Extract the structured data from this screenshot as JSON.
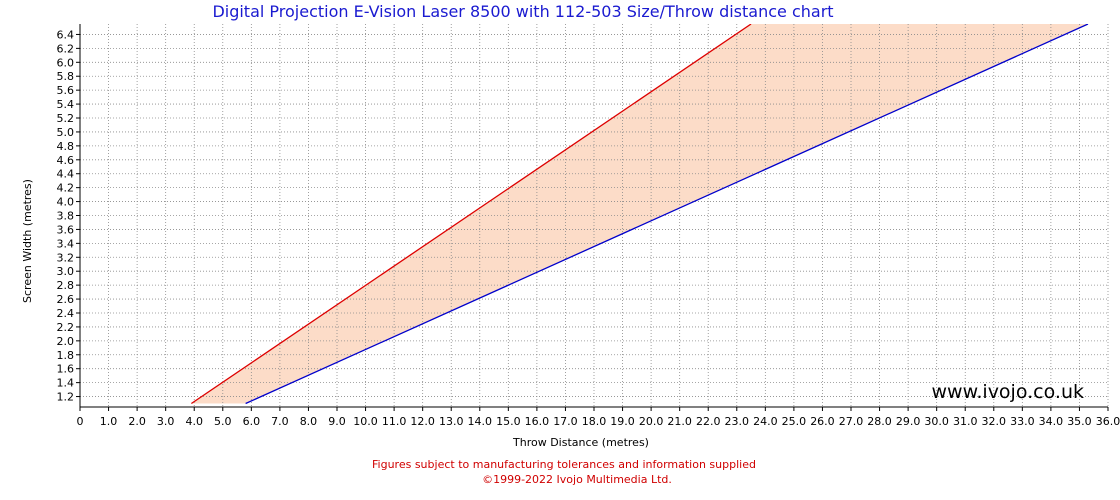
{
  "chart_data": {
    "type": "area",
    "title": "Digital Projection E-Vision Laser 8500 with 112-503 Size/Throw distance chart",
    "xlabel": "Throw Distance (metres)",
    "ylabel": "Screen Width (metres)",
    "xlim": [
      0,
      36
    ],
    "ylim": [
      1.05,
      6.55
    ],
    "x_ticks": [
      "0",
      "1.0",
      "2.0",
      "3.0",
      "4.0",
      "5.0",
      "6.0",
      "7.0",
      "8.0",
      "9.0",
      "10.0",
      "11.0",
      "12.0",
      "13.0",
      "14.0",
      "15.0",
      "16.0",
      "17.0",
      "18.0",
      "19.0",
      "20.0",
      "21.0",
      "22.0",
      "23.0",
      "24.0",
      "25.0",
      "26.0",
      "27.0",
      "28.0",
      "29.0",
      "30.0",
      "31.0",
      "32.0",
      "33.0",
      "34.0",
      "35.0",
      "36.0"
    ],
    "y_ticks": [
      "1.2",
      "1.4",
      "1.6",
      "1.8",
      "2.0",
      "2.2",
      "2.4",
      "2.6",
      "2.8",
      "3.0",
      "3.2",
      "3.4",
      "3.6",
      "3.8",
      "4.0",
      "4.2",
      "4.4",
      "4.6",
      "4.8",
      "5.0",
      "5.2",
      "5.4",
      "5.6",
      "5.8",
      "6.0",
      "6.2",
      "6.4"
    ],
    "grid": true,
    "series": [
      {
        "color": "#dd0000",
        "points": [
          [
            3.9,
            1.1
          ],
          [
            23.5,
            6.55
          ]
        ]
      },
      {
        "color": "#0000cc",
        "points": [
          [
            5.8,
            1.1
          ],
          [
            35.3,
            6.55
          ]
        ]
      }
    ],
    "fill_color": "#fcdcc8"
  },
  "watermark": "www.ivojo.co.uk",
  "footer": {
    "line1": "Figures subject to manufacturing tolerances and information supplied",
    "line2": "©1999-2022 Ivojo Multimedia Ltd."
  }
}
